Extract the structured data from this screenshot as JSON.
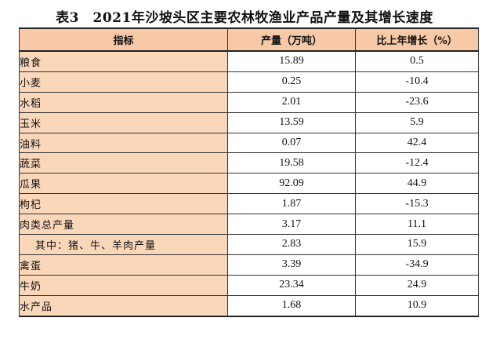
{
  "title": "表3　2021年沙坡头区主要农林牧渔业产品产量及其增长速度",
  "table": {
    "headers": [
      "指标",
      "产量（万吨）",
      "比上年增长（%）"
    ],
    "rows": [
      {
        "label": "粮食",
        "output": "15.89",
        "growth": "0.5"
      },
      {
        "label": "小麦",
        "output": "0.25",
        "growth": "-10.4"
      },
      {
        "label": "水稻",
        "output": "2.01",
        "growth": "-23.6"
      },
      {
        "label": "玉米",
        "output": "13.59",
        "growth": "5.9"
      },
      {
        "label": "油料",
        "output": "0.07",
        "growth": "42.4"
      },
      {
        "label": "蔬菜",
        "output": "19.58",
        "growth": "-12.4"
      },
      {
        "label": "瓜果",
        "output": "92.09",
        "growth": "44.9"
      },
      {
        "label": "枸杞",
        "output": "1.87",
        "growth": "-15.3"
      },
      {
        "label": "肉类总产量",
        "output": "3.17",
        "growth": "11.1"
      },
      {
        "label": "其中：猪、牛、羊肉产量",
        "output": "2.83",
        "growth": "15.9"
      },
      {
        "label": "禽蛋",
        "output": "3.39",
        "growth": "-34.9"
      },
      {
        "label": "牛奶",
        "output": "23.34",
        "growth": "24.9"
      },
      {
        "label": "水产品",
        "output": "1.68",
        "growth": "10.9"
      }
    ]
  },
  "colors": {
    "header_bg": "#f7c9a6",
    "label_bg": "#fbd7ba",
    "border": "#333333"
  }
}
